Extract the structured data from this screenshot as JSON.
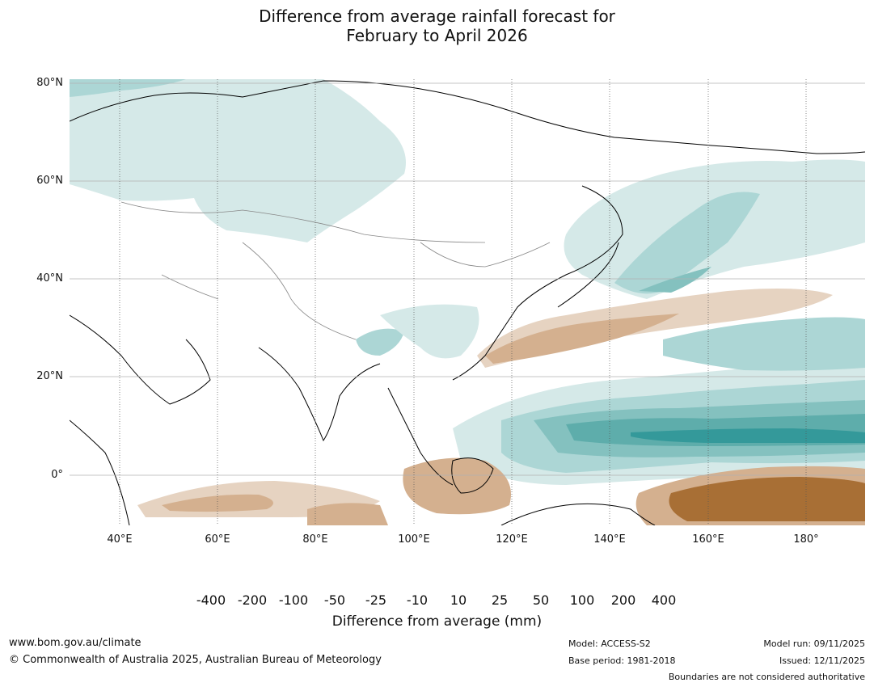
{
  "title": {
    "line1": "Difference from average rainfall forecast for",
    "line2": "February to April 2026"
  },
  "map": {
    "lat_labels": [
      "80°N",
      "60°N",
      "40°N",
      "20°N",
      "0°"
    ],
    "lon_labels": [
      "40°E",
      "60°E",
      "80°E",
      "100°E",
      "120°E",
      "140°E",
      "160°E",
      "180°"
    ],
    "extent": {
      "lon_min": 30,
      "lon_max": 191,
      "lat_min": -10,
      "lat_max": 81
    }
  },
  "colorbar": {
    "labels": [
      "-400",
      "-200",
      "-100",
      "-50",
      "-25",
      "-10",
      "10",
      "25",
      "50",
      "100",
      "200",
      "400"
    ],
    "colors": [
      "#a86f35",
      "#ac7138",
      "#c0936a",
      "#d4b08f",
      "#e6d3c1",
      "#f2ede8",
      "#ffffff",
      "#d5e9e8",
      "#acd6d5",
      "#84c1bf",
      "#5eadab",
      "#34999a",
      "#2b7f7e"
    ],
    "title": "Difference from average (mm)"
  },
  "footer": {
    "website": "www.bom.gov.au/climate",
    "copyright": "© Commonwealth of Australia 2025, Australian Bureau of Meteorology",
    "model": "Model: ACCESS-S2",
    "base_period": "Base period: 1981-2018",
    "model_run": "Model run: 09/11/2025",
    "issued": "Issued: 12/11/2025",
    "boundaries_note": "Boundaries are not considered authoritative"
  }
}
